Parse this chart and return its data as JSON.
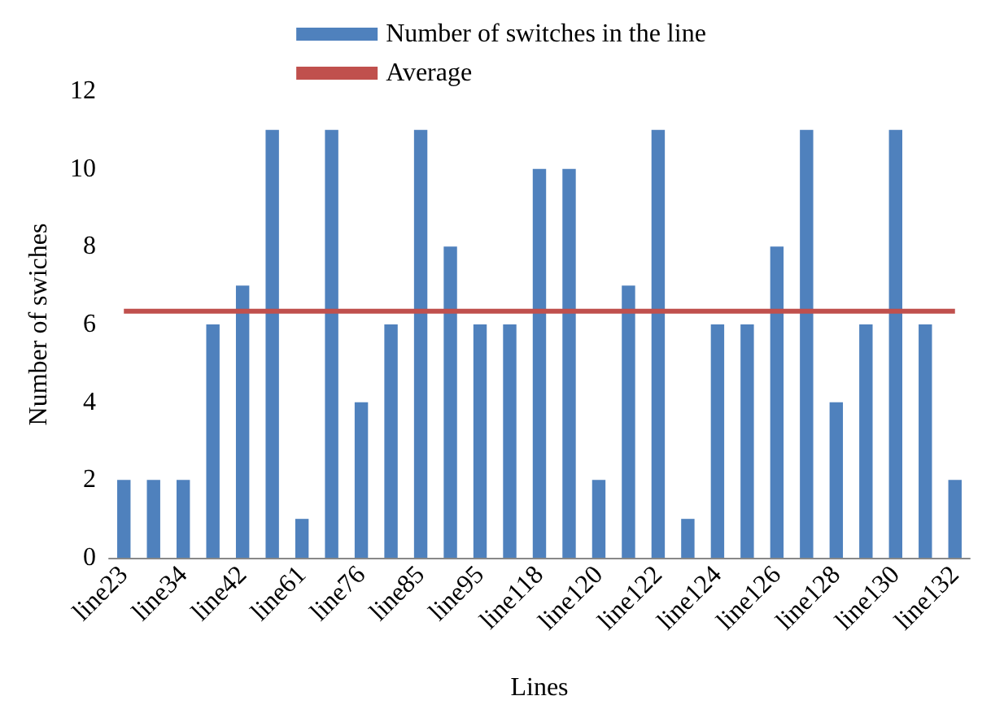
{
  "chart_data": {
    "type": "bar",
    "xlabel": "Lines",
    "ylabel": "Number of swiches",
    "categories": [
      "line23",
      null,
      "line34",
      null,
      "line42",
      null,
      "line61",
      null,
      "line76",
      null,
      "line85",
      null,
      "line95",
      null,
      "line118",
      null,
      "line120",
      null,
      "line122",
      null,
      "line124",
      null,
      "line126",
      null,
      "line128",
      null,
      "line130",
      null,
      "line132"
    ],
    "series": [
      {
        "name": "Number of switches in the line",
        "color": "#4f81bd",
        "values": [
          2,
          2,
          2,
          6,
          7,
          11,
          1,
          11,
          4,
          6,
          11,
          8,
          6,
          6,
          10,
          10,
          2,
          7,
          11,
          1,
          6,
          6,
          8,
          11,
          4,
          6,
          11,
          6,
          2
        ]
      },
      {
        "name": "Average",
        "type": "line",
        "color": "#c0504d",
        "values": [
          6.34,
          6.34,
          6.34,
          6.34,
          6.34,
          6.34,
          6.34,
          6.34,
          6.34,
          6.34,
          6.34,
          6.34,
          6.34,
          6.34,
          6.34,
          6.34,
          6.34,
          6.34,
          6.34,
          6.34,
          6.34,
          6.34,
          6.34,
          6.34,
          6.34,
          6.34,
          6.34,
          6.34,
          6.34
        ]
      }
    ],
    "ylim": [
      0,
      12
    ],
    "yticks": [
      0,
      2,
      4,
      6,
      8,
      10,
      12
    ],
    "grid": false,
    "legend": "top",
    "marker": "none"
  }
}
